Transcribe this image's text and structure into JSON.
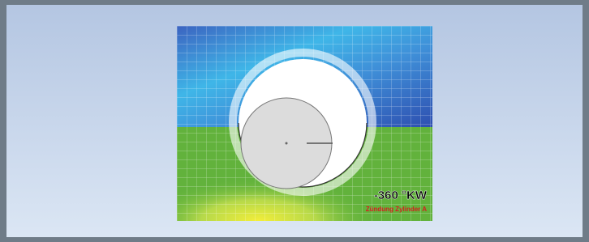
{
  "image": {
    "angle_label": "-360 °KW",
    "caption": "Zündung Zylinder A"
  }
}
